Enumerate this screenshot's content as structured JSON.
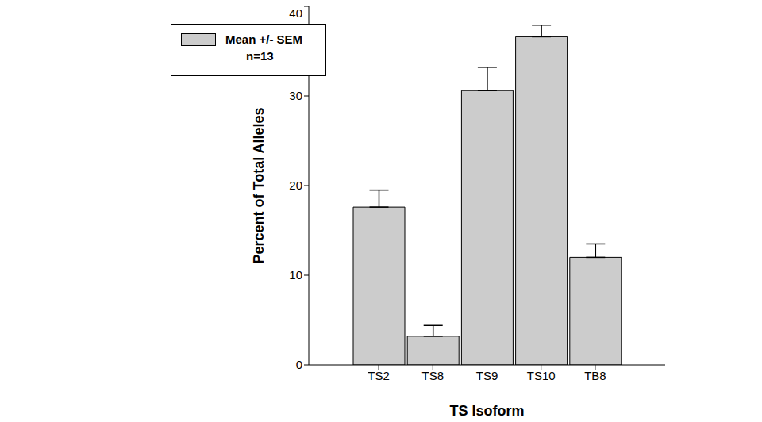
{
  "chart_data": {
    "type": "bar",
    "x_label": "TS Isoform",
    "y_label": "Percent of Total Alleles",
    "categories": [
      "TS2",
      "TS8",
      "TS9",
      "TS10",
      "TB8"
    ],
    "series": [
      {
        "name": "Mean +/- SEM",
        "color": "#cccccc",
        "values": [
          17.6,
          3.2,
          30.6,
          36.6,
          12.0
        ],
        "errors": [
          1.9,
          1.2,
          2.6,
          1.3,
          1.5
        ]
      }
    ],
    "annotation": "n=13",
    "ylim": [
      0,
      40
    ],
    "yticks": [
      0,
      10,
      20,
      30,
      40
    ],
    "grid": false,
    "legend": "upper left"
  }
}
